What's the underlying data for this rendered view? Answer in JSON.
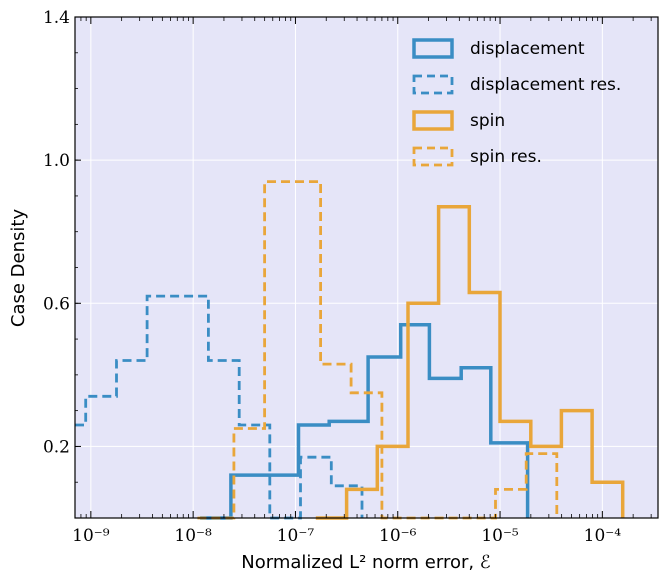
{
  "chart_data": {
    "type": "histogram-step",
    "xlabel": "Normalized L² norm error, ℰ",
    "ylabel": "Case Density",
    "xscale": "log",
    "xlim": [
      7e-10,
      0.00035
    ],
    "ylim": [
      0,
      1.4
    ],
    "x_ticks": [
      {
        "value": 1e-09,
        "label": "10⁻⁹"
      },
      {
        "value": 1e-08,
        "label": "10⁻⁸"
      },
      {
        "value": 1e-07,
        "label": "10⁻⁷"
      },
      {
        "value": 1e-06,
        "label": "10⁻⁶"
      },
      {
        "value": 1e-05,
        "label": "10⁻⁵"
      },
      {
        "value": 0.0001,
        "label": "10⁻⁴"
      }
    ],
    "y_ticks": [
      {
        "value": 0.2,
        "label": "0.2"
      },
      {
        "value": 0.6,
        "label": "0.6"
      },
      {
        "value": 1.0,
        "label": "1.0"
      },
      {
        "value": 1.4,
        "label": "1.4"
      }
    ],
    "grid": true,
    "legend_position": "top-right",
    "colors": {
      "background": "#e5e5f8",
      "displacement": "#3a8dc4",
      "spin": "#e9a63a"
    },
    "series": [
      {
        "name": "displacement",
        "style": "solid",
        "color": "#3a8dc4",
        "edges": [
          1.17e-08,
          2.34e-08,
          4.68e-08,
          1.07e-07,
          2.14e-07,
          5.13e-07,
          1.07e-06,
          2.04e-06,
          4.17e-06,
          8.13e-06,
          1.86e-05
        ],
        "values": [
          0,
          0.12,
          0.12,
          0.26,
          0.27,
          0.45,
          0.54,
          0.39,
          0.42,
          0.21,
          0.18
        ]
      },
      {
        "name": "displacement res.",
        "style": "dashed",
        "color": "#3a8dc4",
        "edges": [
          7e-10,
          8.9e-10,
          1.78e-09,
          3.55e-09,
          7.08e-09,
          1.41e-08,
          2.82e-08,
          5.62e-08,
          1.12e-07,
          2.24e-07,
          4.47e-07
        ],
        "values": [
          0.26,
          0.34,
          0.44,
          0.62,
          0.62,
          0.44,
          0.26,
          0,
          0.17,
          0.09,
          0.05
        ]
      },
      {
        "name": "spin",
        "style": "solid",
        "color": "#e9a63a",
        "edges": [
          1.58e-07,
          3.16e-07,
          6.31e-07,
          1.26e-06,
          2.51e-06,
          5.01e-06,
          1e-05,
          2e-05,
          3.98e-05,
          7.94e-05,
          0.000158
        ],
        "values": [
          0,
          0.08,
          0.2,
          0.6,
          0.87,
          0.63,
          0.27,
          0.2,
          0.3,
          0.1,
          0.1
        ]
      },
      {
        "name": "spin res.",
        "style": "dashed",
        "color": "#e9a63a",
        "edges": [
          1.1e-08,
          2.5e-08,
          5e-08,
          1.76e-07,
          3.5e-07,
          7e-07,
          9.6e-07,
          9.02e-06,
          1.8e-05,
          3.59e-05
        ],
        "values": [
          0,
          0.25,
          0.94,
          0.43,
          0.35,
          0,
          0,
          0.08,
          0.18,
          0
        ]
      }
    ]
  }
}
